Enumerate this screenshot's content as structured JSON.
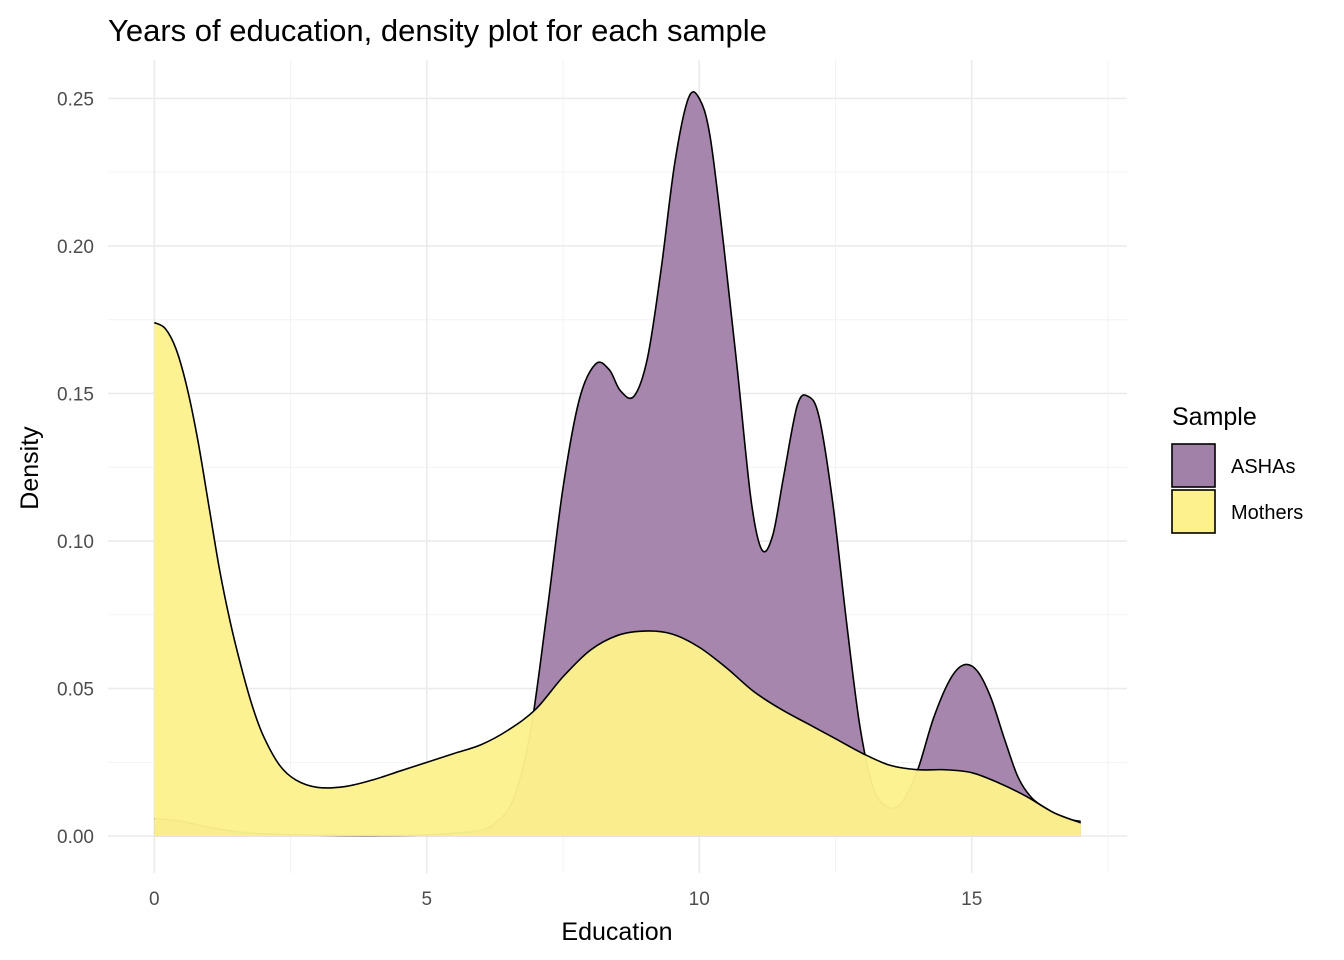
{
  "chart_data": {
    "type": "area",
    "title": "Years of education, density plot for each sample",
    "xlabel": "Education",
    "ylabel": "Density",
    "xlim": [
      -0.85,
      17.85
    ],
    "ylim": [
      -0.0125,
      0.263
    ],
    "x_ticks": [
      0,
      5,
      10,
      15
    ],
    "x_tick_labels": [
      "0",
      "5",
      "10",
      "15"
    ],
    "y_ticks": [
      0.0,
      0.05,
      0.1,
      0.15,
      0.2,
      0.25
    ],
    "y_tick_labels": [
      "0.00",
      "0.05",
      "0.10",
      "0.15",
      "0.20",
      "0.25"
    ],
    "grid": true,
    "legend": {
      "title": "Sample",
      "position": "right"
    },
    "series": [
      {
        "name": "ASHAs",
        "color": "#a281a9",
        "points": [
          [
            0,
            0.006
          ],
          [
            0.5,
            0.005
          ],
          [
            1,
            0.003
          ],
          [
            1.5,
            0.0015
          ],
          [
            2,
            0.0008
          ],
          [
            3,
            0.0003
          ],
          [
            4,
            0.0002
          ],
          [
            5,
            0.0004
          ],
          [
            5.5,
            0.001
          ],
          [
            6,
            0.002
          ],
          [
            6.3,
            0.005
          ],
          [
            6.6,
            0.013
          ],
          [
            6.9,
            0.035
          ],
          [
            7.2,
            0.075
          ],
          [
            7.5,
            0.118
          ],
          [
            7.8,
            0.148
          ],
          [
            8.1,
            0.16
          ],
          [
            8.35,
            0.158
          ],
          [
            8.55,
            0.151
          ],
          [
            8.8,
            0.149
          ],
          [
            9.05,
            0.162
          ],
          [
            9.3,
            0.192
          ],
          [
            9.55,
            0.228
          ],
          [
            9.8,
            0.25
          ],
          [
            10.0,
            0.25
          ],
          [
            10.2,
            0.237
          ],
          [
            10.45,
            0.2
          ],
          [
            10.7,
            0.158
          ],
          [
            10.95,
            0.114
          ],
          [
            11.15,
            0.097
          ],
          [
            11.35,
            0.102
          ],
          [
            11.55,
            0.122
          ],
          [
            11.8,
            0.146
          ],
          [
            12.0,
            0.149
          ],
          [
            12.2,
            0.142
          ],
          [
            12.45,
            0.113
          ],
          [
            12.7,
            0.073
          ],
          [
            12.95,
            0.037
          ],
          [
            13.2,
            0.016
          ],
          [
            13.45,
            0.01
          ],
          [
            13.7,
            0.011
          ],
          [
            14.0,
            0.022
          ],
          [
            14.3,
            0.04
          ],
          [
            14.6,
            0.053
          ],
          [
            14.85,
            0.058
          ],
          [
            15.1,
            0.056
          ],
          [
            15.35,
            0.047
          ],
          [
            15.6,
            0.033
          ],
          [
            15.85,
            0.02
          ],
          [
            16.1,
            0.013
          ],
          [
            16.4,
            0.009
          ],
          [
            16.7,
            0.006
          ],
          [
            17.0,
            0.005
          ]
        ]
      },
      {
        "name": "Mothers",
        "color": "#fdf18d",
        "points": [
          [
            0,
            0.174
          ],
          [
            0.2,
            0.172
          ],
          [
            0.4,
            0.165
          ],
          [
            0.6,
            0.152
          ],
          [
            0.8,
            0.134
          ],
          [
            1.0,
            0.112
          ],
          [
            1.2,
            0.09
          ],
          [
            1.4,
            0.072
          ],
          [
            1.6,
            0.057
          ],
          [
            1.8,
            0.044
          ],
          [
            2.0,
            0.034
          ],
          [
            2.3,
            0.024
          ],
          [
            2.6,
            0.019
          ],
          [
            3.0,
            0.0165
          ],
          [
            3.5,
            0.0168
          ],
          [
            4.0,
            0.019
          ],
          [
            4.5,
            0.022
          ],
          [
            5.0,
            0.025
          ],
          [
            5.5,
            0.028
          ],
          [
            6.0,
            0.031
          ],
          [
            6.5,
            0.036
          ],
          [
            7.0,
            0.043
          ],
          [
            7.5,
            0.054
          ],
          [
            8.0,
            0.063
          ],
          [
            8.5,
            0.068
          ],
          [
            9.0,
            0.0695
          ],
          [
            9.5,
            0.0685
          ],
          [
            10.0,
            0.064
          ],
          [
            10.5,
            0.057
          ],
          [
            11.0,
            0.049
          ],
          [
            11.5,
            0.043
          ],
          [
            12.0,
            0.038
          ],
          [
            12.5,
            0.033
          ],
          [
            13.0,
            0.028
          ],
          [
            13.5,
            0.024
          ],
          [
            14.0,
            0.0225
          ],
          [
            14.5,
            0.0225
          ],
          [
            15.0,
            0.0215
          ],
          [
            15.5,
            0.018
          ],
          [
            16.0,
            0.0135
          ],
          [
            16.5,
            0.008
          ],
          [
            17.0,
            0.0045
          ]
        ]
      }
    ]
  }
}
